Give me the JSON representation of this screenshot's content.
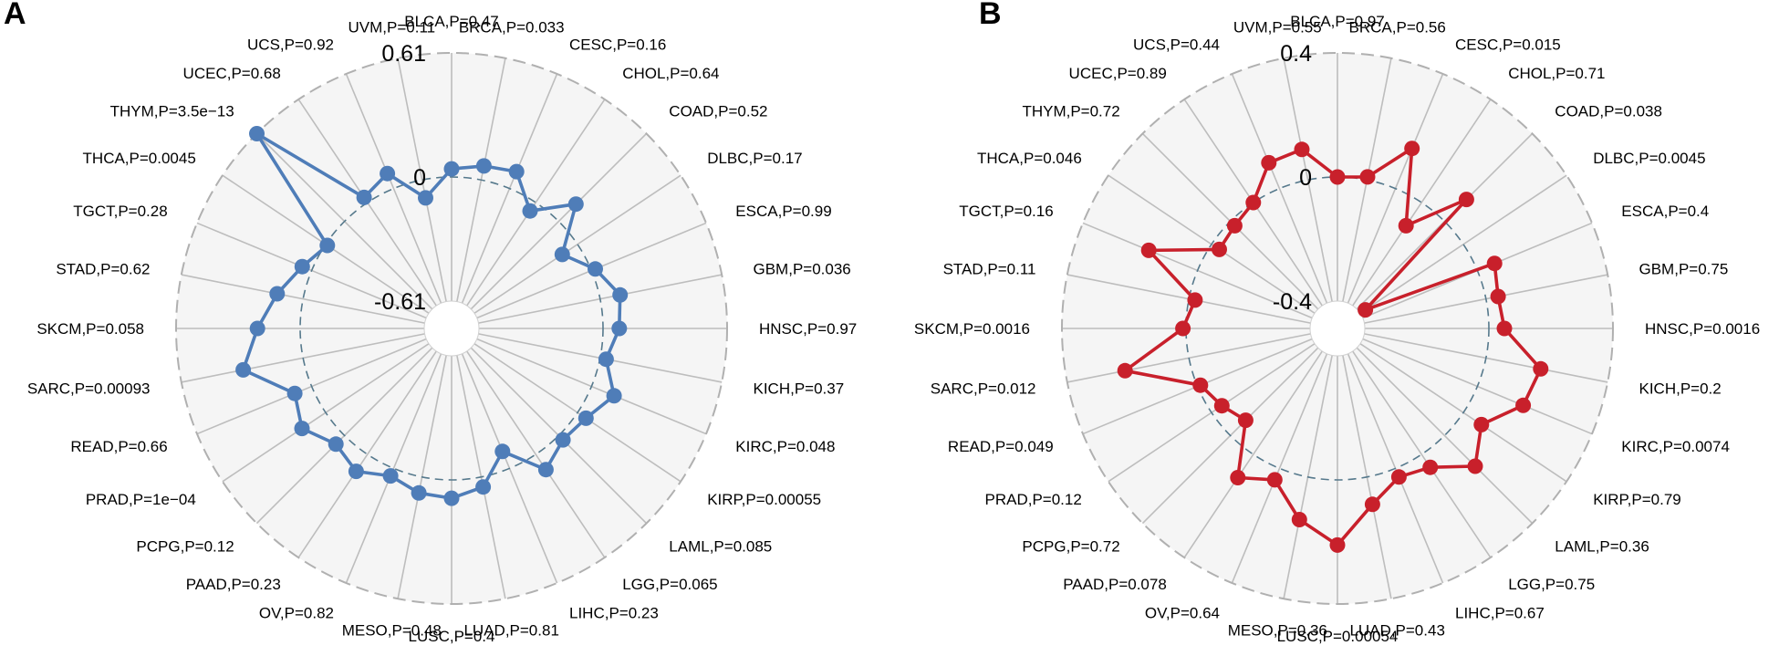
{
  "chart_data": [
    {
      "type": "radar",
      "panel_label": "A",
      "series_color": "#4f7db8",
      "rlim": [
        -0.61,
        0.61
      ],
      "ring_labels": {
        "max": "0.61",
        "mid": "0",
        "min": "-0.61"
      },
      "categories": [
        "BLCA",
        "BRCA",
        "CESC",
        "CHOL",
        "COAD",
        "DLBC",
        "ESCA",
        "GBM",
        "HNSC",
        "KICH",
        "KIRC",
        "KIRP",
        "LAML",
        "LGG",
        "LIHC",
        "LUAD",
        "LUSC",
        "MESO",
        "OV",
        "PAAD",
        "PCPG",
        "PRAD",
        "READ",
        "SARC",
        "SKCM",
        "STAD",
        "TGCT",
        "THCA",
        "THYM",
        "UCEC",
        "UCS",
        "UVM"
      ],
      "labels": [
        "BLCA,P=0.47",
        "BRCA,P=0.033",
        "CESC,P=0.16",
        "CHOL,P=0.64",
        "COAD,P=0.52",
        "DLBC,P=0.17",
        "ESCA,P=0.99",
        "GBM,P=0.036",
        "HNSC,P=0.97",
        "KICH,P=0.37",
        "KIRC,P=0.048",
        "KIRP,P=0.00055",
        "LAML,P=0.085",
        "LGG,P=0.065",
        "LIHC,P=0.23",
        "LUAD,P=0.81",
        "LUSC,P=0.4",
        "MESO,P=0.48",
        "OV,P=0.82",
        "PAAD,P=0.23",
        "PCPG,P=0.12",
        "PRAD,P=1e−04",
        "READ,P=0.66",
        "SARC,P=0.00093",
        "SKCM,P=0.058",
        "STAD,P=0.62",
        "TGCT,P=0.28",
        "THCA,P=0.0045",
        "THYM,P=3.5e−13",
        "UCEC,P=0.68",
        "UCS,P=0.92",
        "UVM,P=0.11"
      ],
      "values": [
        0.04,
        0.07,
        0.09,
        -0.05,
        0.12,
        -0.09,
        0.02,
        0.1,
        0.08,
        0.03,
        0.12,
        0.05,
        0.03,
        0.09,
        -0.09,
        0.05,
        0.09,
        0.08,
        0.04,
        0.1,
        0.06,
        0.14,
        0.09,
        0.3,
        0.21,
        0.13,
        0.05,
        -0.01,
        0.61,
        0.03,
        0.08,
        -0.09
      ]
    },
    {
      "type": "radar",
      "panel_label": "B",
      "series_color": "#c8202b",
      "rlim": [
        -0.4,
        0.4
      ],
      "ring_labels": {
        "max": "0.4",
        "mid": "0",
        "min": "-0.4"
      },
      "categories": [
        "BLCA",
        "BRCA",
        "CESC",
        "CHOL",
        "COAD",
        "DLBC",
        "ESCA",
        "GBM",
        "HNSC",
        "KICH",
        "KIRC",
        "KIRP",
        "LAML",
        "LGG",
        "LIHC",
        "LUAD",
        "LUSC",
        "MESO",
        "OV",
        "PAAD",
        "PCPG",
        "PRAD",
        "READ",
        "SARC",
        "SKCM",
        "STAD",
        "TGCT",
        "THCA",
        "THYM",
        "UCEC",
        "UCS",
        "UVM"
      ],
      "labels": [
        "BLCA,P=0.97",
        "BRCA,P=0.56",
        "CESC,P=0.015",
        "CHOL,P=0.71",
        "COAD,P=0.038",
        "DLBC,P=0.0045",
        "ESCA,P=0.4",
        "GBM,P=0.75",
        "HNSC,P=0.0016",
        "KICH,P=0.2",
        "KIRC,P=0.0074",
        "KIRP,P=0.79",
        "LAML,P=0.36",
        "LGG,P=0.75",
        "LIHC,P=0.67",
        "LUAD,P=0.43",
        "LUSC,P=0.00054",
        "MESO,P=0.36",
        "OV,P=0.64",
        "PAAD,P=0.078",
        "PCPG,P=0.72",
        "PRAD,P=0.12",
        "READ,P=0.049",
        "SARC,P=0.012",
        "SKCM,P=0.0016",
        "STAD,P=0.11",
        "TGCT,P=0.16",
        "THCA,P=0.046",
        "THYM,P=0.72",
        "UCEC,P=0.89",
        "UCS,P=0.44",
        "UVM,P=0.55"
      ],
      "values": [
        0.0,
        0.01,
        0.14,
        -0.09,
        0.1,
        -0.38,
        0.06,
        0.04,
        0.05,
        0.18,
        0.16,
        0.07,
        0.14,
        0.05,
        0.03,
        0.09,
        0.21,
        0.14,
        0.04,
        0.09,
        -0.07,
        -0.04,
        -0.01,
        0.21,
        0.01,
        -0.02,
        0.17,
        -0.03,
        -0.02,
        0.0,
        0.09,
        0.1
      ]
    }
  ]
}
